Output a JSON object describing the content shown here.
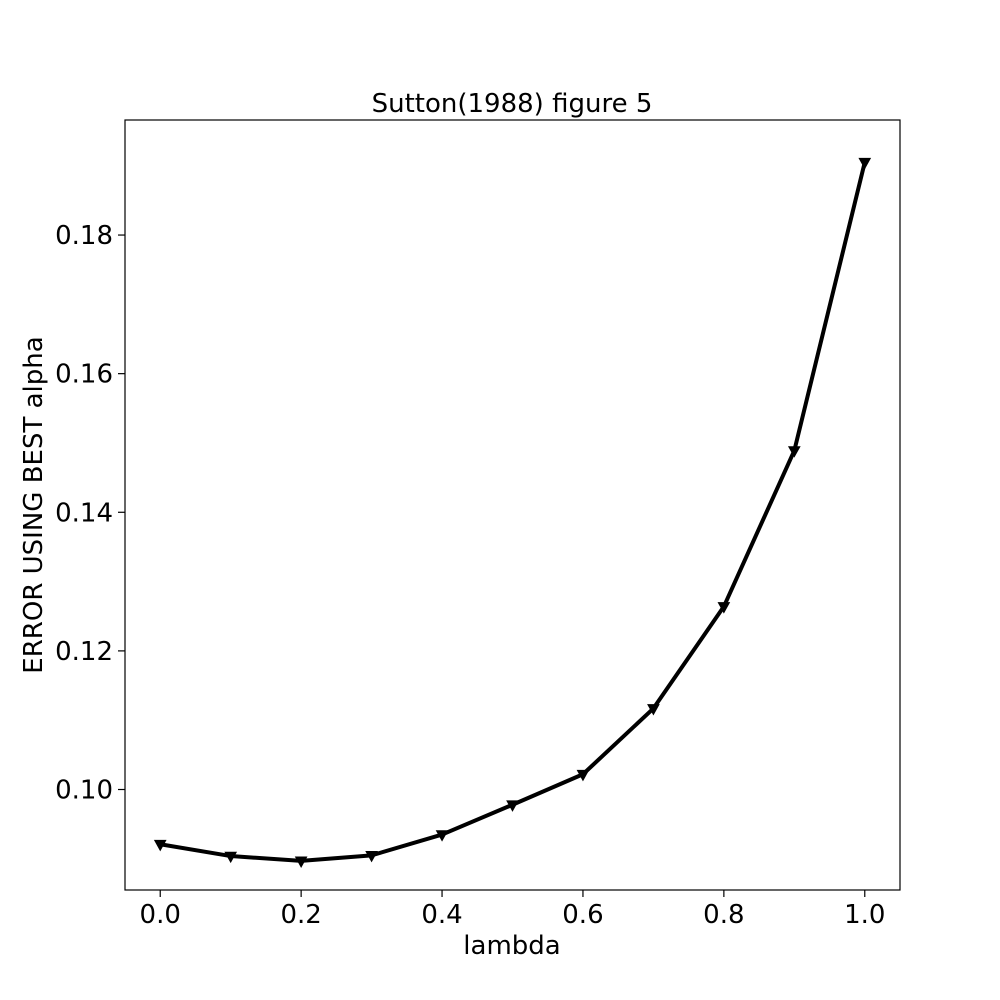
{
  "chart_data": {
    "type": "line",
    "title": "Sutton(1988) figure 5",
    "xlabel": "lambda",
    "ylabel": "ERROR USING BEST alpha",
    "xlim": [
      -0.05,
      1.05
    ],
    "ylim": [
      0.0855,
      0.1966
    ],
    "grid": false,
    "x_ticks": [
      "0.0",
      "0.2",
      "0.4",
      "0.6",
      "0.8",
      "1.0"
    ],
    "y_ticks": [
      "0.10",
      "0.12",
      "0.14",
      "0.16",
      "0.18"
    ],
    "series": [
      {
        "color": "#000000",
        "marker": "triangle-down",
        "x": [
          0.0,
          0.1,
          0.2,
          0.3,
          0.4,
          0.5,
          0.6,
          0.7,
          0.8,
          0.9,
          1.0
        ],
        "y": [
          0.0921,
          0.0904,
          0.0897,
          0.0905,
          0.0935,
          0.0978,
          0.1022,
          0.1117,
          0.1264,
          0.1489,
          0.1905
        ]
      }
    ]
  }
}
